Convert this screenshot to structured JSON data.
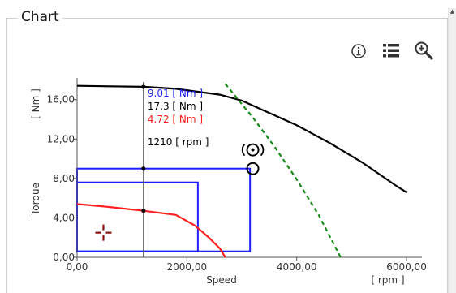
{
  "panel": {
    "title": "Chart"
  },
  "toolbar": {
    "icons": [
      "info-icon",
      "list-icon",
      "zoom-in-icon"
    ]
  },
  "colors": {
    "torque_curve": "#000000",
    "limit_curve": "#1a8a1a",
    "operating_curve": "#ff2020",
    "boxes": "#1f1fff",
    "cursor": "#404040",
    "marker_cross": "#8b1010",
    "readout_blue": "#1f1fff",
    "readout_black": "#000000",
    "readout_red": "#ff2020"
  },
  "chart_data": {
    "type": "line",
    "xlabel": "Speed",
    "xunit": "[ rpm ]",
    "ylabel": "Torque",
    "yunit": "[ Nm ]",
    "xlim": [
      0,
      6200
    ],
    "ylim": [
      0,
      18.2
    ],
    "x_ticks": [
      0,
      2000,
      4000,
      6000
    ],
    "x_tick_labels": [
      "0,00",
      "2000,00",
      "4000,00",
      "6000,00"
    ],
    "y_ticks": [
      0,
      4,
      8,
      12,
      16
    ],
    "y_tick_labels": [
      "0,00",
      "4,00",
      "8,00",
      "12,00",
      "16,00"
    ],
    "grid": false,
    "series": [
      {
        "role": "torque_curve",
        "style": "solid",
        "x": [
          0,
          1210,
          1800,
          2600,
          3000,
          3400,
          4000,
          4600,
          5200,
          5800,
          6000
        ],
        "y": [
          17.4,
          17.3,
          17.1,
          16.5,
          15.9,
          14.9,
          13.4,
          11.6,
          9.6,
          7.3,
          6.6
        ]
      },
      {
        "role": "limit_curve",
        "style": "dashed",
        "x": [
          2700,
          3200,
          3600,
          4000,
          4400,
          4800
        ],
        "y": [
          17.6,
          14.2,
          11.2,
          7.9,
          4.3,
          0
        ]
      },
      {
        "role": "operating_curve",
        "style": "solid",
        "x": [
          0,
          600,
          1210,
          1800,
          2150,
          2400,
          2600,
          2700
        ],
        "y": [
          5.4,
          5.1,
          4.72,
          4.3,
          3.2,
          2.0,
          0.9,
          0
        ]
      }
    ],
    "boxes": [
      {
        "x": [
          0,
          3150
        ],
        "y": [
          0.6,
          9.0
        ]
      },
      {
        "x": [
          0,
          2200
        ],
        "y": [
          0.6,
          7.6
        ]
      }
    ],
    "cursor": {
      "x": 1210,
      "points_y": [
        17.3,
        9.0,
        4.72
      ],
      "readouts": [
        {
          "value": "9.01",
          "unit": "[ Nm ]",
          "role": "blue"
        },
        {
          "value": "17.3",
          "unit": "[ Nm ]",
          "role": "black"
        },
        {
          "value": "4.72",
          "unit": "[ Nm ]",
          "role": "red"
        },
        {
          "value": "1210",
          "unit": "[ rpm ]",
          "role": "black"
        }
      ]
    },
    "markers": [
      {
        "kind": "dot-circle",
        "x": 3200,
        "y": 10.9
      },
      {
        "kind": "circle",
        "x": 3200,
        "y": 9.0
      },
      {
        "kind": "cross",
        "x": 480,
        "y": 2.5
      }
    ]
  }
}
